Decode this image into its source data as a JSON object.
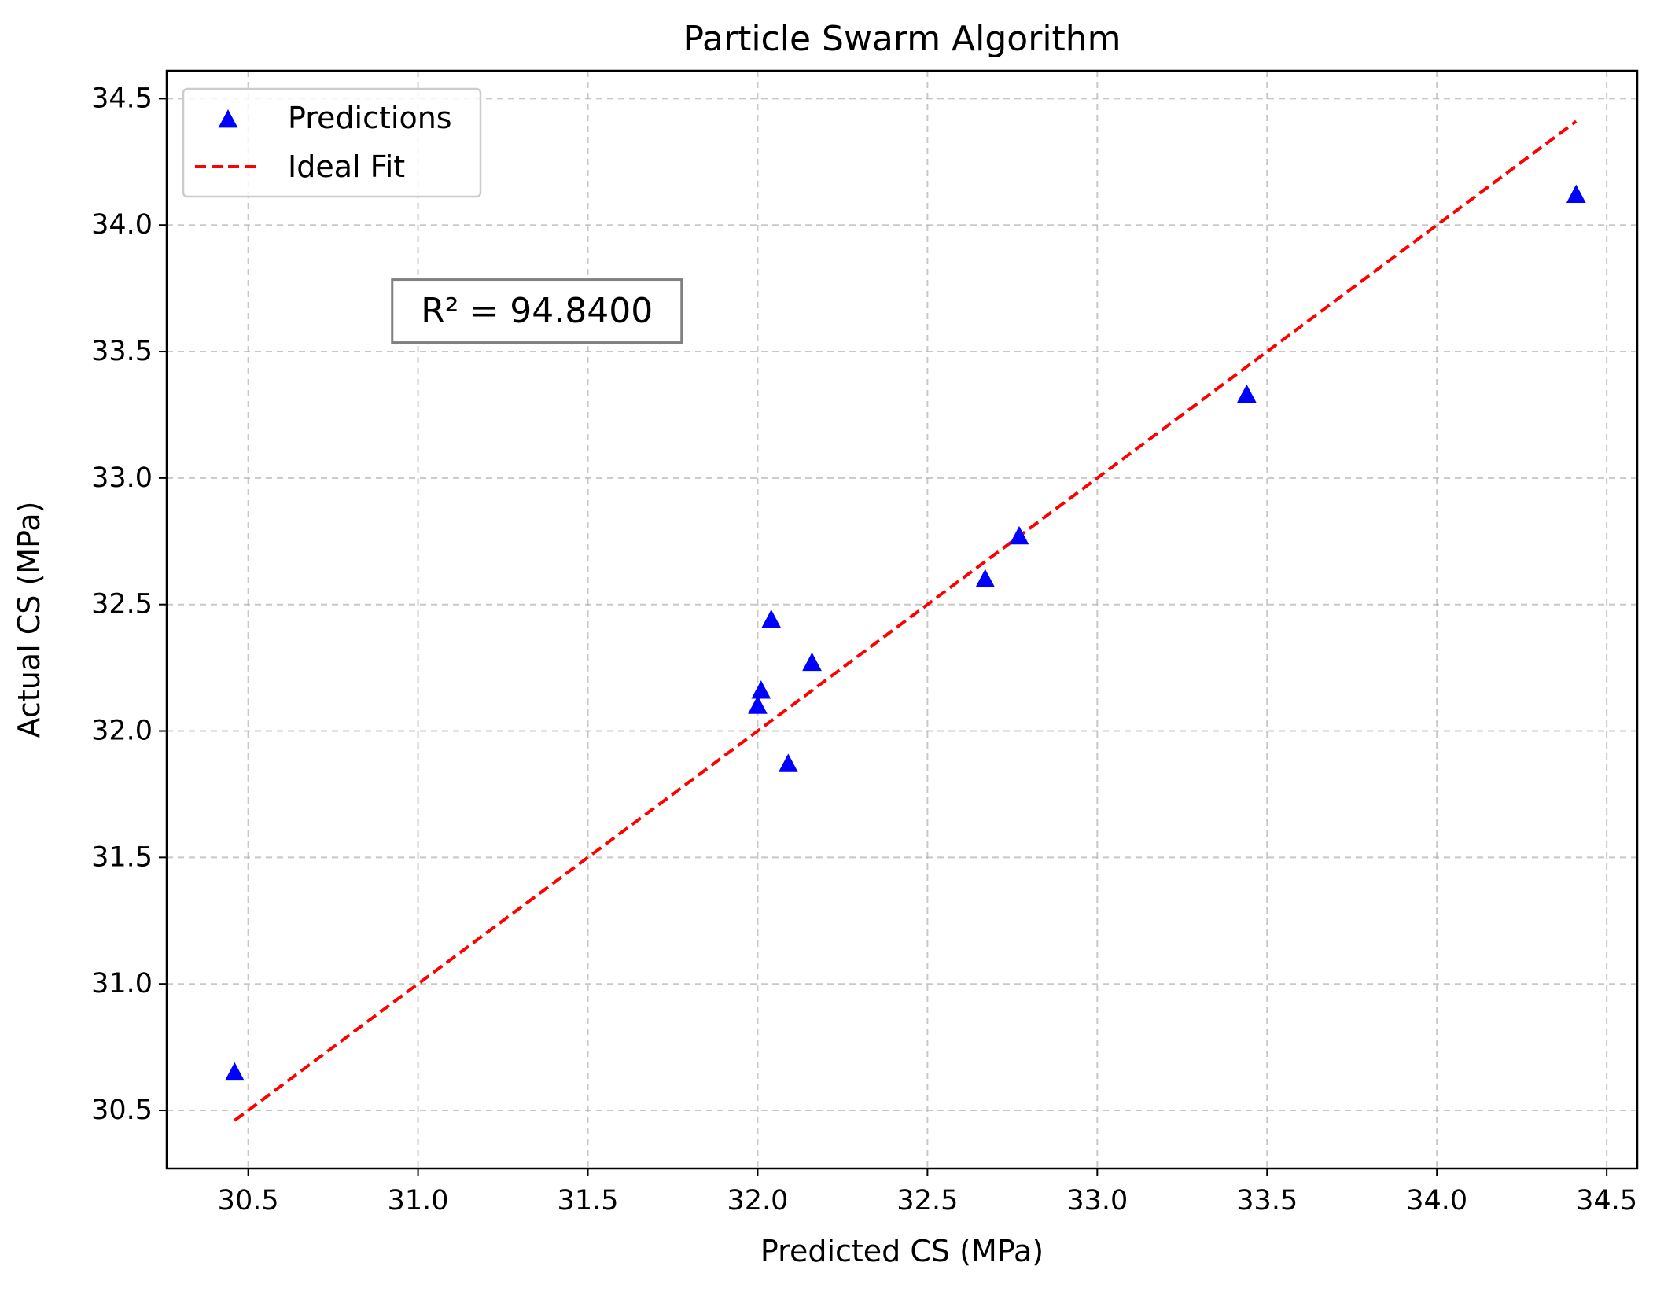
{
  "chart_data": {
    "type": "scatter",
    "title": "Particle Swarm Algorithm",
    "xlabel": "Predicted CS (MPa)",
    "ylabel": "Actual CS (MPa)",
    "xlim": [
      30.26,
      34.59
    ],
    "ylim": [
      30.27,
      34.61
    ],
    "xticks": [
      30.5,
      31.0,
      31.5,
      32.0,
      32.5,
      33.0,
      33.5,
      34.0,
      34.5
    ],
    "yticks": [
      30.5,
      31.0,
      31.5,
      32.0,
      32.5,
      33.0,
      33.5,
      34.0,
      34.5
    ],
    "xtick_labels": [
      "30.5",
      "31.0",
      "31.5",
      "32.0",
      "32.5",
      "33.0",
      "33.5",
      "34.0",
      "34.5"
    ],
    "ytick_labels": [
      "30.5",
      "31.0",
      "31.5",
      "32.0",
      "32.5",
      "33.0",
      "33.5",
      "34.0",
      "34.5"
    ],
    "grid": true,
    "legend_position": "top-left",
    "series": [
      {
        "name": "Predictions",
        "kind": "scatter",
        "marker": "triangle-up",
        "color": "#0000ff",
        "points": [
          {
            "x": 30.46,
            "y": 30.65
          },
          {
            "x": 32.0,
            "y": 32.1
          },
          {
            "x": 32.01,
            "y": 32.16
          },
          {
            "x": 32.04,
            "y": 32.44
          },
          {
            "x": 32.09,
            "y": 31.87
          },
          {
            "x": 32.16,
            "y": 32.27
          },
          {
            "x": 32.67,
            "y": 32.6
          },
          {
            "x": 32.77,
            "y": 32.77
          },
          {
            "x": 33.44,
            "y": 33.33
          },
          {
            "x": 34.41,
            "y": 34.12
          }
        ]
      },
      {
        "name": "Ideal Fit",
        "kind": "line",
        "style": "dashed",
        "color": "#ff0000",
        "points": [
          {
            "x": 30.46,
            "y": 30.46
          },
          {
            "x": 34.41,
            "y": 34.41
          }
        ]
      }
    ],
    "annotation": {
      "text": "R² = 94.8400",
      "x": 31.35,
      "y": 33.66
    }
  }
}
